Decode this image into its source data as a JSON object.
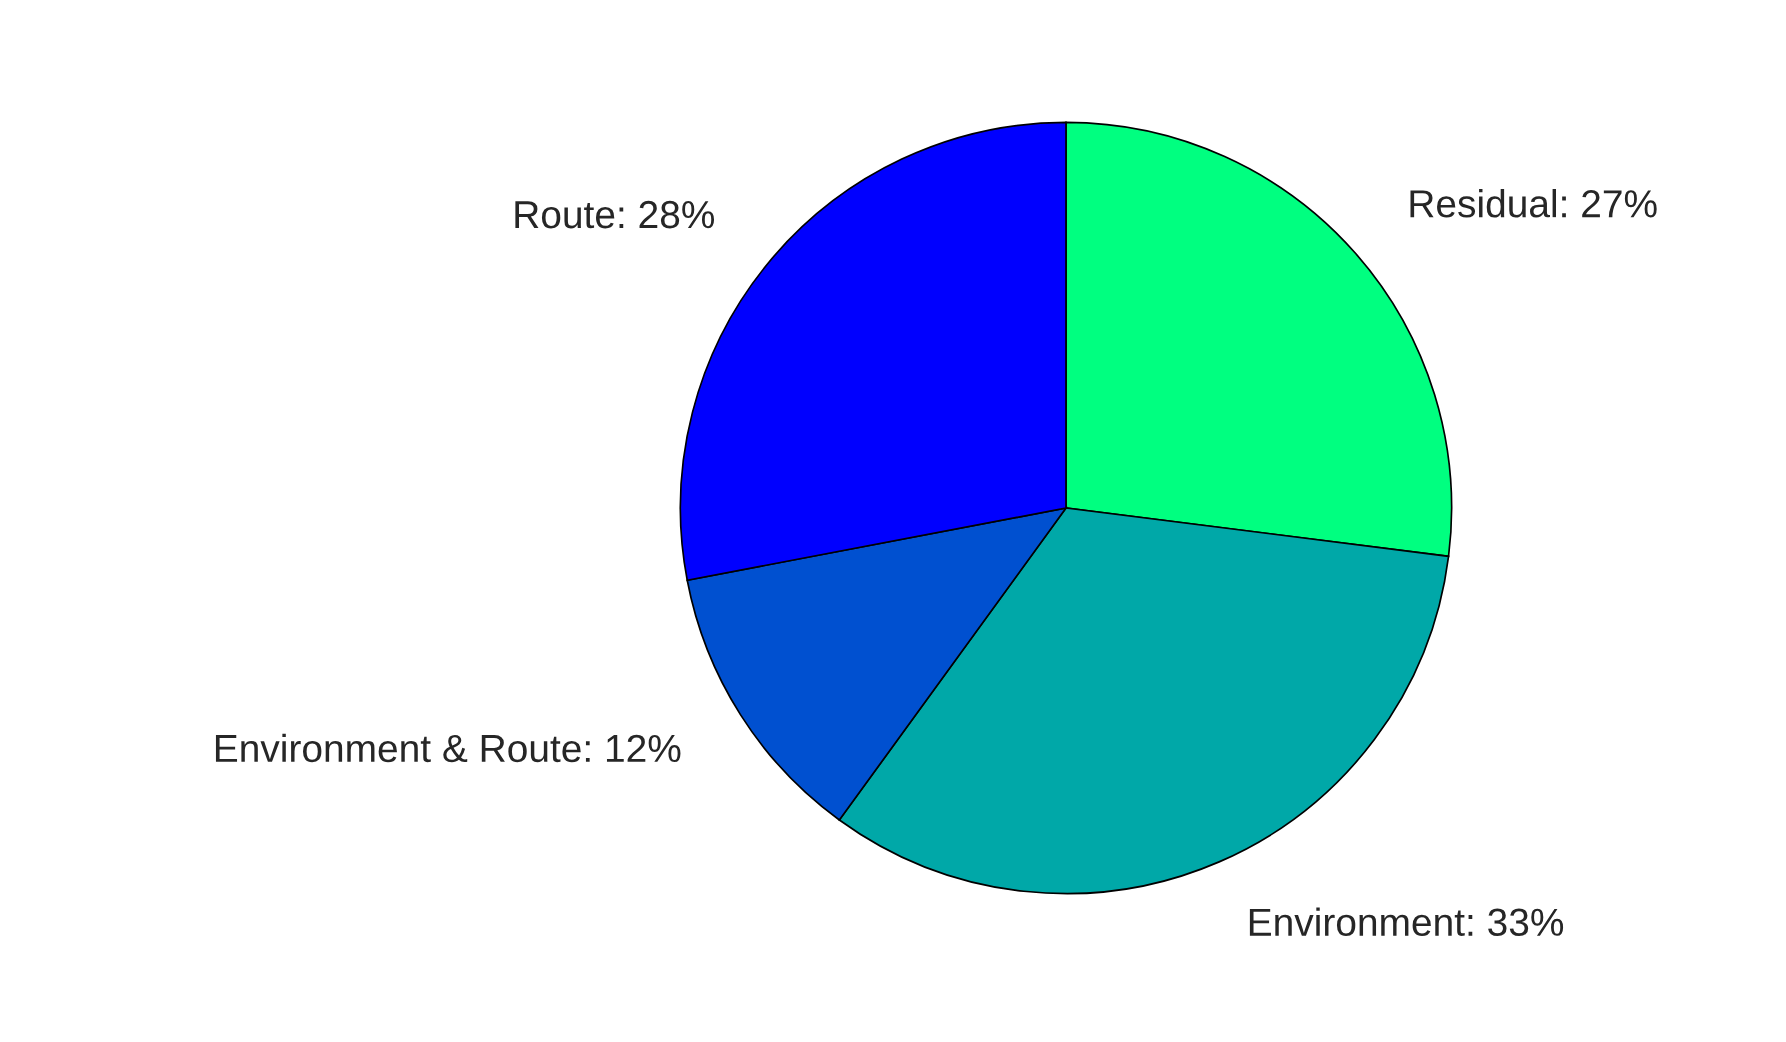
{
  "chart_data": {
    "type": "pie",
    "categories": [
      "Residual: 27%",
      "Environment: 33%",
      "Environment & Route: 12%",
      "Route: 28%"
    ],
    "values": [
      27,
      33,
      12,
      28
    ],
    "colors": [
      "#00ff80",
      "#00a8a8",
      "#0050d0",
      "#0000ff"
    ]
  }
}
